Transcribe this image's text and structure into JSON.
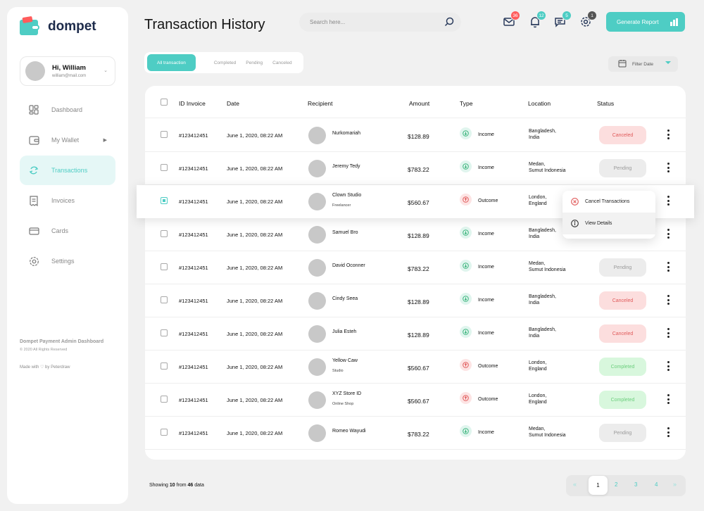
{
  "brand": {
    "name": "dompet"
  },
  "profile": {
    "name": "Hi, William",
    "email": "william@mail.com"
  },
  "nav": [
    {
      "label": "Dashboard",
      "icon": "dashboard-icon"
    },
    {
      "label": "My Wallet",
      "icon": "wallet-icon"
    },
    {
      "label": "Transactions",
      "icon": "transactions-icon",
      "active": true
    },
    {
      "label": "Invoices",
      "icon": "invoice-icon"
    },
    {
      "label": "Cards",
      "icon": "card-icon"
    },
    {
      "label": "Settings",
      "icon": "settings-icon"
    }
  ],
  "sidebar_footer": {
    "title": "Dompet Payment Admin Dashboard",
    "copyright": "© 2020 All Rights Reserved",
    "made_with": "Made with ♡ by Peterdraw"
  },
  "header": {
    "title": "Transaction History",
    "search_placeholder": "Search here...",
    "badges": {
      "mail": "36",
      "bell": "12",
      "chat": "5",
      "settings": "1"
    },
    "generate_label": "Generate Report"
  },
  "tabs": [
    "All transaction",
    "Completed",
    "Pending",
    "Canceled"
  ],
  "filter_label": "Filter Date",
  "table": {
    "columns": {
      "id": "ID Invoice",
      "date": "Date",
      "recipient": "Recipient",
      "amount": "Amount",
      "type": "Type",
      "location": "Location",
      "status": "Status"
    },
    "rows": [
      {
        "id": "#123412451",
        "date": "June 1, 2020, 08:22 AM",
        "name": "Nurkomariah",
        "sub": "",
        "amount": "$128.89",
        "type": "Income",
        "loc1": "Bangladesh,",
        "loc2": "India",
        "status": "Canceled"
      },
      {
        "id": "#123412451",
        "date": "June 1, 2020, 08:22 AM",
        "name": "Jeremy Tedy",
        "sub": "",
        "amount": "$783.22",
        "type": "Income",
        "loc1": "Medan,",
        "loc2": "Sumut Indonesia",
        "status": "Pending"
      },
      {
        "id": "#123412451",
        "date": "June 1, 2020, 08:22 AM",
        "name": "Clown Studio",
        "sub": "Freelancer",
        "amount": "$560.67",
        "type": "Outcome",
        "loc1": "London,",
        "loc2": "England",
        "status": ""
      },
      {
        "id": "#123412451",
        "date": "June 1, 2020, 08:22 AM",
        "name": "Samuel Bro",
        "sub": "",
        "amount": "$128.89",
        "type": "Income",
        "loc1": "Bangladesh,",
        "loc2": "India",
        "status": ""
      },
      {
        "id": "#123412451",
        "date": "June 1, 2020, 08:22 AM",
        "name": "David Oconner",
        "sub": "",
        "amount": "$783.22",
        "type": "Income",
        "loc1": "Medan,",
        "loc2": "Sumut Indonesia",
        "status": "Pending"
      },
      {
        "id": "#123412451",
        "date": "June 1, 2020, 08:22 AM",
        "name": "Cindy Seea",
        "sub": "",
        "amount": "$128.89",
        "type": "Income",
        "loc1": "Bangladesh,",
        "loc2": "India",
        "status": "Canceled"
      },
      {
        "id": "#123412451",
        "date": "June 1, 2020, 08:22 AM",
        "name": "Julia Esteh",
        "sub": "",
        "amount": "$128.89",
        "type": "Income",
        "loc1": "Bangladesh,",
        "loc2": "India",
        "status": "Canceled"
      },
      {
        "id": "#123412451",
        "date": "June 1, 2020, 08:22 AM",
        "name": "Yellow Caw",
        "sub": "Studio",
        "amount": "$560.67",
        "type": "Outcome",
        "loc1": "London,",
        "loc2": "England",
        "status": "Completed"
      },
      {
        "id": "#123412451",
        "date": "June 1, 2020, 08:22 AM",
        "name": "XYZ Store ID",
        "sub": "Online Shop",
        "amount": "$560.67",
        "type": "Outcome",
        "loc1": "London,",
        "loc2": "England",
        "status": "Completed"
      },
      {
        "id": "#123412451",
        "date": "June 1, 2020, 08:22 AM",
        "name": "Romeo Wayudi",
        "sub": "",
        "amount": "$783.22",
        "type": "Income",
        "loc1": "Medan,",
        "loc2": "Sumut Indonesia",
        "status": "Pending"
      }
    ]
  },
  "popup": {
    "cancel": "Cancel Transactions",
    "view": "View Details"
  },
  "pagination": {
    "showing_prefix": "Showing",
    "shown": "10",
    "from": "from",
    "total": "46",
    "suffix": "data",
    "pages": [
      "1",
      "2",
      "3",
      "4"
    ],
    "prev": "«",
    "next": "»"
  },
  "colors": {
    "accent": "#4ecdc4",
    "danger": "#e05a5a",
    "success": "#6dcf7e"
  }
}
